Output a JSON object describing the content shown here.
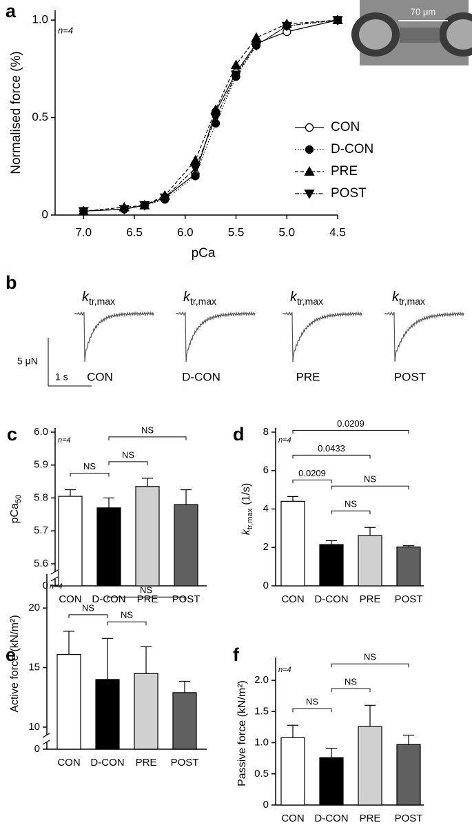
{
  "chart_data": [
    {
      "type": "line",
      "panel": "a",
      "note": "n=4",
      "xlabel": "pCa",
      "ylabel": "Normalised force (%)",
      "x": [
        7.0,
        6.6,
        6.4,
        6.2,
        5.9,
        5.7,
        5.5,
        5.3,
        5.0,
        4.5
      ],
      "xlim": [
        7.28,
        4.5
      ],
      "xticks": [
        {
          "value": 7,
          "label": "7.0"
        },
        6.5,
        {
          "value": 6,
          "label": "6.0"
        },
        5.5,
        {
          "value": 5,
          "label": "5.0"
        },
        4.5
      ],
      "ylim": [
        0,
        1.05
      ],
      "yticks": [
        0,
        0.5,
        {
          "value": 1,
          "label": "1.0"
        }
      ],
      "series": [
        {
          "name": "CON",
          "color": "#000000",
          "marker": "open-circle",
          "dash": "solid",
          "values": [
            0.02,
            0.03,
            0.05,
            0.09,
            0.21,
            0.53,
            0.73,
            0.88,
            0.94,
            1.0
          ]
        },
        {
          "name": "D-CON",
          "color": "#000000",
          "marker": "circle",
          "dash": "dotted",
          "values": [
            0.02,
            0.03,
            0.05,
            0.08,
            0.2,
            0.47,
            0.71,
            0.87,
            0.97,
            1.0
          ]
        },
        {
          "name": "PRE",
          "color": "#000000",
          "marker": "triangle-up",
          "dash": "dashed",
          "values": [
            0.02,
            0.04,
            0.05,
            0.1,
            0.28,
            0.54,
            0.77,
            0.91,
            0.98,
            1.0
          ]
        },
        {
          "name": "POST",
          "color": "#000000",
          "marker": "triangle-down",
          "dash": "dashdot",
          "values": [
            0.02,
            0.03,
            0.05,
            0.09,
            0.24,
            0.5,
            0.72,
            0.87,
            0.97,
            1.0
          ]
        }
      ],
      "inset_label": "70 μm"
    },
    {
      "type": "trace",
      "panel": "b",
      "trace_label": {
        "main": "k",
        "sub": "tr,max"
      },
      "categories": [
        "CON",
        "D-CON",
        "PRE",
        "POST"
      ],
      "scale_y": "5 μN",
      "scale_x": "1 s"
    },
    {
      "type": "bar",
      "panel": "c",
      "note": "n=4",
      "ylabel": {
        "main": "pCa",
        "sub": "50"
      },
      "categories": [
        "CON",
        "D-CON",
        "PRE",
        "POST"
      ],
      "values": [
        5.805,
        5.77,
        5.835,
        5.78
      ],
      "errors": [
        0.02,
        0.03,
        0.025,
        0.045
      ],
      "colors": [
        "#ffffff",
        "#000000",
        "#d0d0d0",
        "#606060"
      ],
      "ylim": [
        5.6,
        6.0
      ],
      "yticks": [
        5.6,
        5.7,
        5.8,
        5.9,
        {
          "value": 6,
          "label": "6.0"
        }
      ],
      "ybreak": 0,
      "comparisons": [
        {
          "from": "CON",
          "to": "D-CON",
          "label": "NS"
        },
        {
          "from": "D-CON",
          "to": "PRE",
          "label": "NS"
        },
        {
          "from": "D-CON",
          "to": "POST",
          "label": "NS"
        }
      ]
    },
    {
      "type": "bar",
      "panel": "d",
      "note": "n=4",
      "ylabel": {
        "main": "k",
        "sub": "tr,max",
        "unit": "(1/s)"
      },
      "categories": [
        "CON",
        "D-CON",
        "PRE",
        "POST"
      ],
      "values": [
        4.4,
        2.15,
        2.62,
        2.02
      ],
      "errors": [
        0.25,
        0.2,
        0.42,
        0.07
      ],
      "colors": [
        "#ffffff",
        "#000000",
        "#d0d0d0",
        "#606060"
      ],
      "ylim": [
        0,
        8
      ],
      "yticks": [
        0,
        2,
        4,
        6,
        8
      ],
      "comparisons": [
        {
          "from": "CON",
          "to": "D-CON",
          "label": "0.0209"
        },
        {
          "from": "D-CON",
          "to": "PRE",
          "label": "NS"
        },
        {
          "from": "D-CON",
          "to": "POST",
          "label": "NS"
        },
        {
          "from": "CON",
          "to": "PRE",
          "label": "0.0433"
        },
        {
          "from": "CON",
          "to": "POST",
          "label": "0.0209"
        }
      ]
    },
    {
      "type": "bar",
      "panel": "e",
      "note": "n=4",
      "ylabel": "Active force (kN/m²)",
      "categories": [
        "CON",
        "D-CON",
        "PRE",
        "POST"
      ],
      "values": [
        16.1,
        14.0,
        14.5,
        12.9
      ],
      "errors": [
        1.95,
        3.45,
        2.25,
        0.95
      ],
      "colors": [
        "#ffffff",
        "#000000",
        "#d0d0d0",
        "#606060"
      ],
      "ylim": [
        10,
        22.5
      ],
      "yticks": [
        10,
        15,
        20
      ],
      "ybreak": 0,
      "comparisons": [
        {
          "from": "CON",
          "to": "D-CON",
          "label": "NS"
        },
        {
          "from": "D-CON",
          "to": "PRE",
          "label": "NS"
        },
        {
          "from": "D-CON",
          "to": "POST",
          "label": "NS"
        }
      ]
    },
    {
      "type": "bar",
      "panel": "f",
      "note": "n=4",
      "ylabel": "Passive force (kN/m²)",
      "categories": [
        "CON",
        "D-CON",
        "PRE",
        "POST"
      ],
      "values": [
        1.08,
        0.76,
        1.26,
        0.97
      ],
      "errors": [
        0.2,
        0.15,
        0.34,
        0.15
      ],
      "colors": [
        "#ffffff",
        "#000000",
        "#d0d0d0",
        "#606060"
      ],
      "ylim": [
        0,
        2.3
      ],
      "yticks": [
        0,
        0.5,
        {
          "value": 1,
          "label": "1.0"
        },
        1.5,
        {
          "value": 2,
          "label": "2.0"
        }
      ],
      "comparisons": [
        {
          "from": "CON",
          "to": "D-CON",
          "label": "NS"
        },
        {
          "from": "D-CON",
          "to": "PRE",
          "label": "NS"
        },
        {
          "from": "D-CON",
          "to": "POST",
          "label": "NS"
        }
      ]
    }
  ]
}
